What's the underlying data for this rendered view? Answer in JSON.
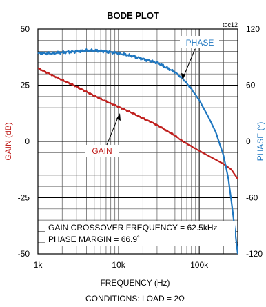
{
  "chart_data": {
    "type": "line",
    "title": "BODE PLOT",
    "corner_label": "toc12",
    "xlabel": "FREQUENCY (Hz)",
    "ylabel_left": "GAIN (dB)",
    "ylabel_right": "PHASE (°)",
    "x_scale": "log",
    "xlim": [
      1000,
      300000
    ],
    "ylim_left": [
      -50,
      50
    ],
    "ylim_right": [
      -120,
      120
    ],
    "x_tick_labels": [
      "1k",
      "10k",
      "100k"
    ],
    "x_tick_values": [
      1000,
      10000,
      100000
    ],
    "y_left_ticks": [
      {
        "value": 50,
        "label": "50"
      },
      {
        "value": 25,
        "label": "25"
      },
      {
        "value": 0,
        "label": "0"
      },
      {
        "value": -25,
        "label": "-25"
      },
      {
        "value": -50,
        "label": "-50"
      }
    ],
    "y_right_ticks": [
      {
        "value": 120,
        "label": "120"
      },
      {
        "value": 60,
        "label": "60"
      },
      {
        "value": 0,
        "label": "0"
      },
      {
        "value": -60,
        "label": "-60"
      },
      {
        "value": -120,
        "label": "-120"
      }
    ],
    "grid": true,
    "series": [
      {
        "name": "GAIN",
        "axis": "left",
        "color": "#c0201e",
        "x": [
          1000,
          1500,
          2000,
          3000,
          5000,
          7000,
          10000,
          15000,
          20000,
          30000,
          50000,
          62500,
          70000,
          100000,
          150000,
          200000,
          250000,
          300000
        ],
        "y": [
          32.5,
          29.5,
          27.3,
          24.4,
          20.3,
          17.8,
          15.4,
          12.5,
          10.3,
          7.3,
          2.6,
          0.0,
          -1.0,
          -4.2,
          -7.6,
          -10.0,
          -12.5,
          -16.7
        ]
      },
      {
        "name": "PHASE",
        "axis": "right",
        "color": "#1f77c0",
        "x": [
          1000,
          1500,
          2000,
          3000,
          4000,
          5000,
          7000,
          10000,
          15000,
          20000,
          30000,
          50000,
          62500,
          80000,
          100000,
          130000,
          160000,
          200000,
          230000,
          260000,
          300000
        ],
        "y": [
          94,
          94,
          95,
          96,
          97,
          97,
          96,
          94,
          91,
          88,
          84,
          74,
          67,
          56,
          44,
          26,
          10,
          -15,
          -40,
          -75,
          -120
        ]
      }
    ],
    "annotations": [
      "GAIN CROSSOVER FREQUENCY = 62.5kHz",
      "PHASE MARGIN = 66.9˚"
    ],
    "conditions": "CONDITIONS: LOAD = 2Ω"
  }
}
